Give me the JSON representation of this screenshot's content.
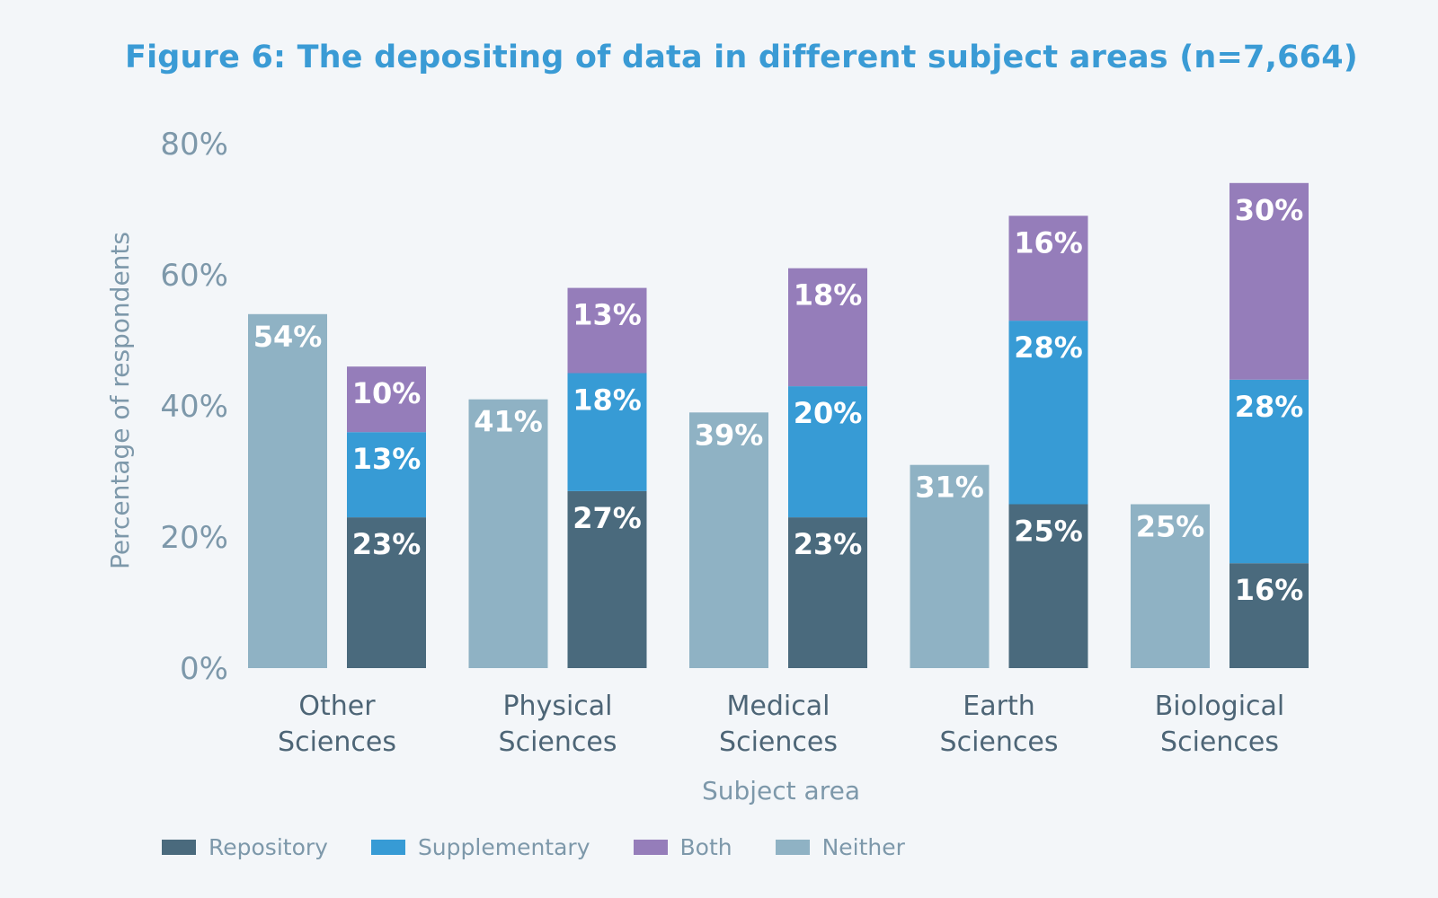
{
  "chart_data": {
    "type": "bar",
    "title": "Figure 6: The depositing of data in different subject areas (n=7,664)",
    "xlabel": "Subject area",
    "ylabel": "Percentage of respondents",
    "ylim": [
      0,
      80
    ],
    "yticks": [
      "0%",
      "20%",
      "40%",
      "60%",
      "80%"
    ],
    "ytick_values": [
      0,
      20,
      40,
      60,
      80
    ],
    "categories": [
      [
        "Other",
        "Sciences"
      ],
      [
        "Physical",
        "Sciences"
      ],
      [
        "Medical",
        "Sciences"
      ],
      [
        "Earth",
        "Sciences"
      ],
      [
        "Biological",
        "Sciences"
      ]
    ],
    "series": [
      {
        "name": "Repository",
        "color": "#4a6a7d",
        "values": [
          23,
          27,
          23,
          25,
          16
        ],
        "labels": [
          "23%",
          "27%",
          "23%",
          "25%",
          "16%"
        ],
        "stack": "deposited"
      },
      {
        "name": "Supplementary",
        "color": "#379bd5",
        "values": [
          13,
          18,
          20,
          28,
          28
        ],
        "labels": [
          "13%",
          "18%",
          "20%",
          "28%",
          "28%"
        ],
        "stack": "deposited"
      },
      {
        "name": "Both",
        "color": "#957dba",
        "values": [
          10,
          13,
          18,
          16,
          30
        ],
        "labels": [
          "10%",
          "13%",
          "18%",
          "16%",
          "30%"
        ],
        "stack": "deposited"
      },
      {
        "name": "Neither",
        "color": "#8fb2c4",
        "values": [
          54,
          41,
          39,
          31,
          25
        ],
        "labels": [
          "54%",
          "41%",
          "39%",
          "31%",
          "25%"
        ],
        "stack": "neither"
      }
    ],
    "legend_position": "bottom-left",
    "grid": false
  }
}
